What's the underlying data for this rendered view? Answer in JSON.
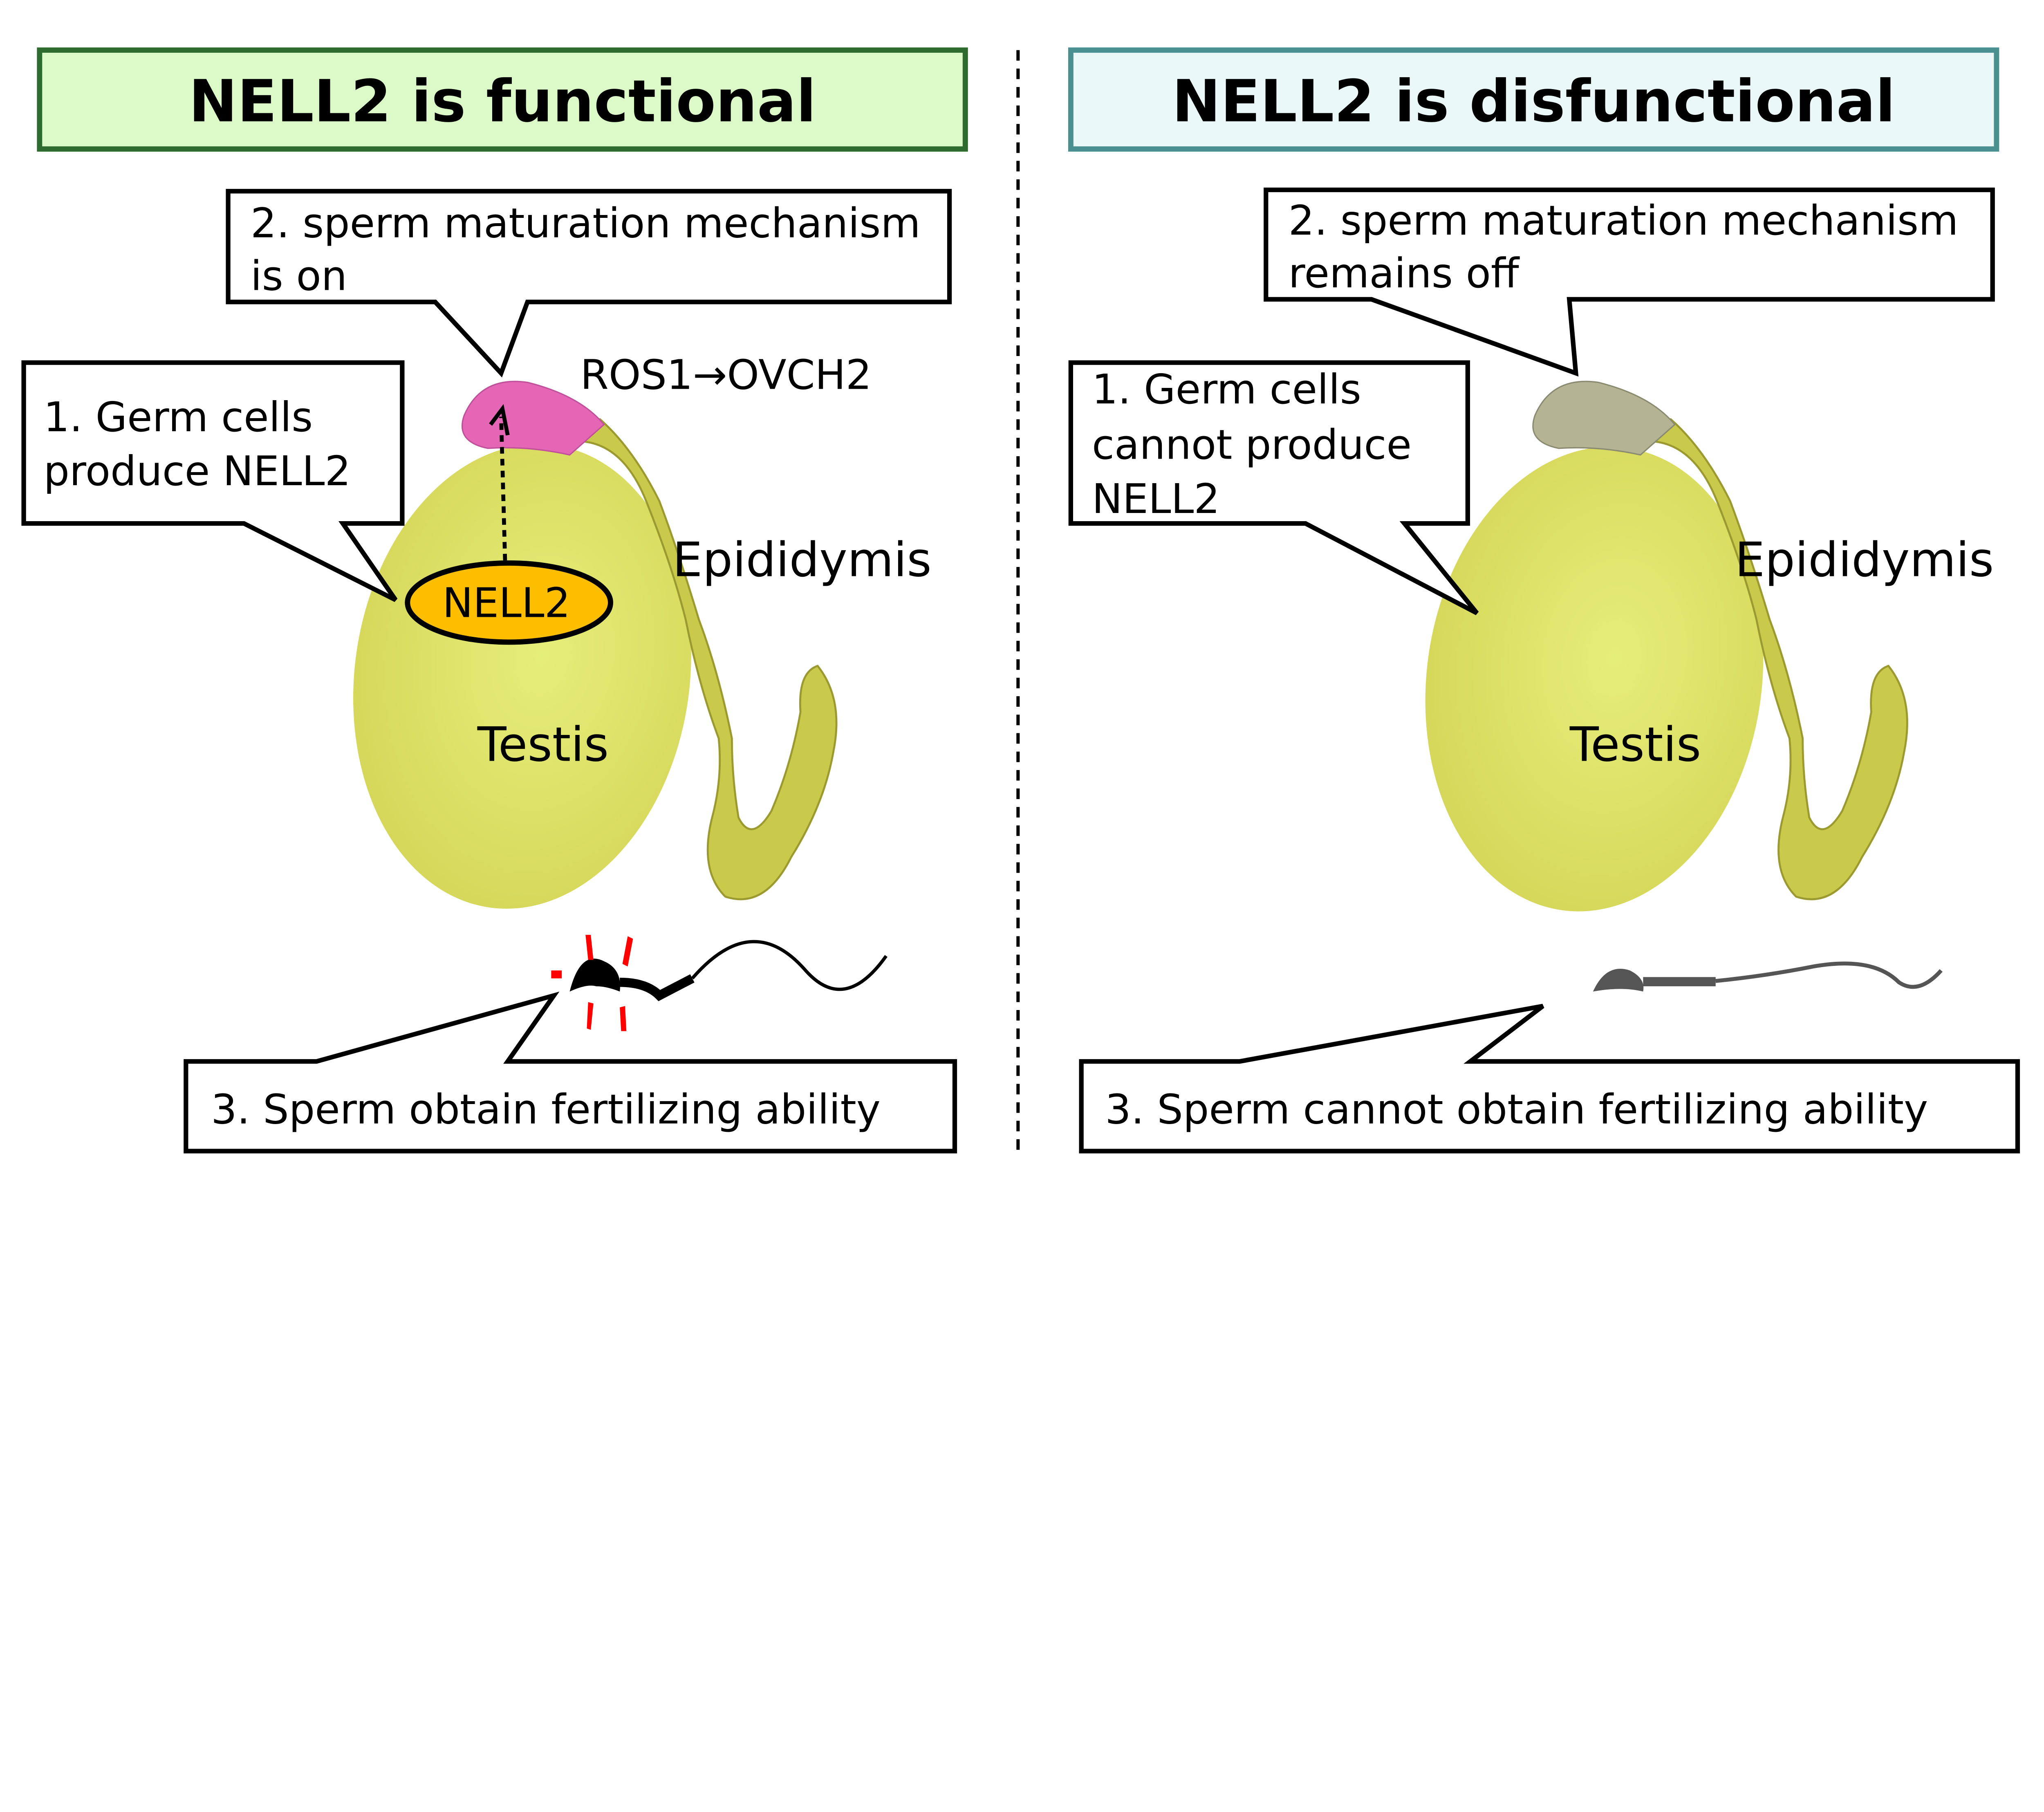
{
  "colors": {
    "functional_title_bg": "#dcfac8",
    "functional_title_border": "#2e6b2e",
    "disfunctional_title_bg": "#eaf8f8",
    "disfunctional_title_border": "#4a9090",
    "testis": "#dbe363",
    "epididymis": "#c9c94c",
    "epididymis_head_active": "#e466b4",
    "epididymis_head_inactive": "#b4b494",
    "nell2": "#fdbe00",
    "spark": "#ff0000",
    "sperm_inactive": "#555555"
  },
  "left": {
    "title": "NELL2 is functional",
    "callout2": [
      "2. sperm maturation mechanism",
      "is on"
    ],
    "callout1": [
      "1. Germ cells",
      "produce NELL2"
    ],
    "pathway": "ROS1→OVCH2",
    "nell2": "NELL2",
    "epididymis": "Epididymis",
    "testis": "Testis",
    "callout3": "3. Sperm obtain fertilizing ability"
  },
  "right": {
    "title": "NELL2 is disfunctional",
    "callout2": [
      "2. sperm maturation mechanism",
      "remains off"
    ],
    "callout1": [
      "1. Germ cells",
      "cannot produce",
      "NELL2"
    ],
    "epididymis": "Epididymis",
    "testis": "Testis",
    "callout3": "3. Sperm cannot obtain fertilizing ability"
  }
}
